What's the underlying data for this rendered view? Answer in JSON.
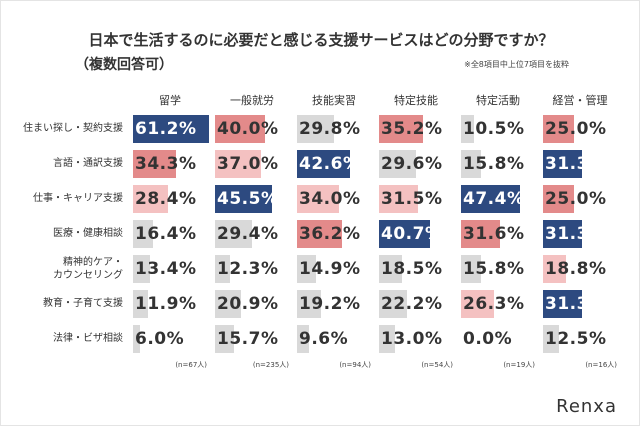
{
  "chart_data": {
    "type": "bar-matrix",
    "title": "日本で生活するのに必要だと感じる支援サービスはどの分野ですか？",
    "subtitle": "（複数回答可）",
    "note": "※全8項目中上位7項目を抜粋",
    "brand": "Renxa",
    "categories": [
      "住まい探し・契約支援",
      "言語・通訳支援",
      "仕事・キャリア支援",
      "医療・健康相談",
      "精神的ケア・\nカウンセリング",
      "教育・子育て支援",
      "法律・ビザ相談"
    ],
    "series": [
      {
        "name": "留学",
        "sample": "(n=67人)",
        "values": [
          61.2,
          34.3,
          28.4,
          16.4,
          13.4,
          11.9,
          6.0
        ],
        "value_labels": [
          "61.2%",
          "34.3%",
          "28.4%",
          "16.4%",
          "13.4%",
          "11.9%",
          "6.0%"
        ],
        "colors": [
          "#2d4a80",
          "#e38a8a",
          "#f4c1c1",
          "#d9d9d9",
          "#d9d9d9",
          "#d9d9d9",
          "#d9d9d9"
        ]
      },
      {
        "name": "一般就労",
        "sample": "(n=235人)",
        "values": [
          40.0,
          37.0,
          45.5,
          29.4,
          12.3,
          20.9,
          15.7
        ],
        "value_labels": [
          "40.0%",
          "37.0%",
          "45.5%",
          "29.4%",
          "12.3%",
          "20.9%",
          "15.7%"
        ],
        "colors": [
          "#e38a8a",
          "#f4c1c1",
          "#2d4a80",
          "#d9d9d9",
          "#d9d9d9",
          "#d9d9d9",
          "#d9d9d9"
        ]
      },
      {
        "name": "技能実習",
        "sample": "(n=94人)",
        "values": [
          29.8,
          42.6,
          34.0,
          36.2,
          14.9,
          19.2,
          9.6
        ],
        "value_labels": [
          "29.8%",
          "42.6%",
          "34.0%",
          "36.2%",
          "14.9%",
          "19.2%",
          "9.6%"
        ],
        "colors": [
          "#d9d9d9",
          "#2d4a80",
          "#f4c1c1",
          "#e38a8a",
          "#d9d9d9",
          "#d9d9d9",
          "#d9d9d9"
        ]
      },
      {
        "name": "特定技能",
        "sample": "(n=54人)",
        "values": [
          35.2,
          29.6,
          31.5,
          40.7,
          18.5,
          22.2,
          13.0
        ],
        "value_labels": [
          "35.2%",
          "29.6%",
          "31.5%",
          "40.7%",
          "18.5%",
          "22.2%",
          "13.0%"
        ],
        "colors": [
          "#e38a8a",
          "#d9d9d9",
          "#f4c1c1",
          "#2d4a80",
          "#d9d9d9",
          "#d9d9d9",
          "#d9d9d9"
        ]
      },
      {
        "name": "特定活動",
        "sample": "(n=19人)",
        "values": [
          10.5,
          15.8,
          47.4,
          31.6,
          15.8,
          26.3,
          0.0
        ],
        "value_labels": [
          "10.5%",
          "15.8%",
          "47.4%",
          "31.6%",
          "15.8%",
          "26.3%",
          "0.0%"
        ],
        "colors": [
          "#d9d9d9",
          "#d9d9d9",
          "#2d4a80",
          "#e38a8a",
          "#d9d9d9",
          "#f4c1c1",
          "#d9d9d9"
        ]
      },
      {
        "name": "経営・管理",
        "sample": "(n=16人)",
        "values": [
          25.0,
          31.3,
          25.0,
          31.3,
          18.8,
          31.3,
          12.5
        ],
        "value_labels": [
          "25.0%",
          "31.3%",
          "25.0%",
          "31.3%",
          "18.8%",
          "31.3%",
          "12.5%"
        ],
        "colors": [
          "#e38a8a",
          "#2d4a80",
          "#e38a8a",
          "#2d4a80",
          "#f4c1c1",
          "#2d4a80",
          "#d9d9d9"
        ]
      }
    ]
  }
}
